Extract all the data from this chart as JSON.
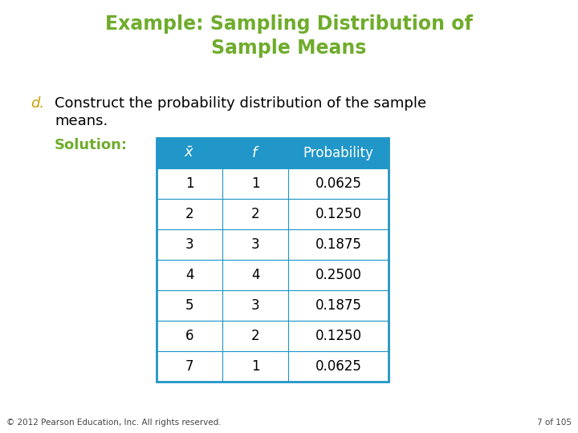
{
  "title_line1": "Example: Sampling Distribution of",
  "title_line2": "Sample Means",
  "title_color": "#6fac2c",
  "bullet_letter": "d.",
  "bullet_color": "#c8a000",
  "body_text_line1": "Construct the probability distribution of the sample",
  "body_text_line2": "means.",
  "solution_label": "Solution:",
  "solution_color": "#6fac2c",
  "col_headers": [
    "x_bar",
    "f",
    "Probability"
  ],
  "table_data": [
    [
      "1",
      "1",
      "0.0625"
    ],
    [
      "2",
      "2",
      "0.1250"
    ],
    [
      "3",
      "3",
      "0.1875"
    ],
    [
      "4",
      "4",
      "0.2500"
    ],
    [
      "5",
      "3",
      "0.1875"
    ],
    [
      "6",
      "2",
      "0.1250"
    ],
    [
      "7",
      "1",
      "0.0625"
    ]
  ],
  "header_bg": "#2196c8",
  "header_text_color": "#ffffff",
  "table_border_color": "#2196c8",
  "cell_bg": "#ffffff",
  "cell_text_color": "#000000",
  "footer_text": "© 2012 Pearson Education, Inc. All rights reserved.",
  "footer_right": "7 of 105",
  "bg_color": "#ffffff"
}
